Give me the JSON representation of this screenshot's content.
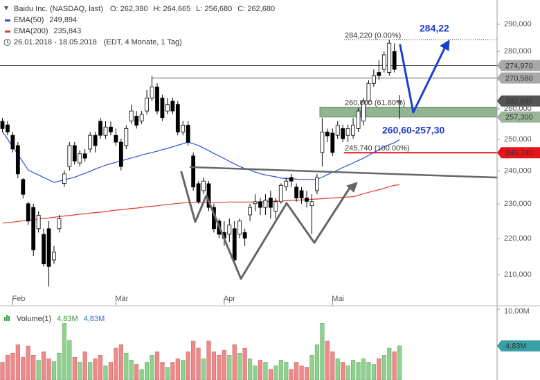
{
  "chart_data": {
    "type": "candlestick",
    "title": "Baidu Inc. (NASDAQ, last)",
    "quote_labels": [
      "O: 262,380",
      "H: 264,665",
      "L: 256,680",
      "C: 262,680"
    ],
    "period": "26.01.2018 - 18.05.2018",
    "period_note": "(EDT, 4 Monate, 1 Tag)",
    "categories": [
      null,
      null,
      "Feb",
      null,
      null,
      null,
      null,
      null,
      null,
      null,
      null,
      null,
      null,
      null,
      null,
      null,
      null,
      null,
      null,
      null,
      null,
      null,
      "Mär",
      null,
      null,
      null,
      null,
      null,
      null,
      null,
      null,
      null,
      null,
      null,
      null,
      null,
      null,
      null,
      null,
      null,
      null,
      null,
      null,
      "Apr",
      null,
      null,
      null,
      null,
      null,
      null,
      null,
      null,
      null,
      null,
      null,
      null,
      null,
      null,
      null,
      null,
      null,
      null,
      null,
      null,
      "Mai",
      null,
      null,
      null,
      null,
      null,
      null,
      null,
      null,
      null,
      null,
      null,
      null,
      null
    ],
    "open": [
      255900,
      254700,
      251300,
      248000,
      237400,
      230100,
      229000,
      222800,
      221200,
      222800,
      214000,
      222800,
      236200,
      241400,
      248000,
      242500,
      245400,
      246900,
      251300,
      255900,
      251300,
      254000,
      251300,
      249100,
      248000,
      256000,
      257600,
      256000,
      259300,
      263700,
      267500,
      263700,
      259300,
      262600,
      261500,
      252400,
      254600,
      244700,
      236100,
      234000,
      236100,
      229000,
      225000,
      221700,
      221200,
      222800,
      221200,
      221700,
      226800,
      230100,
      230700,
      229000,
      231800,
      227900,
      230700,
      235200,
      238000,
      235100,
      234000,
      231800,
      229500,
      234000,
      245800,
      252400,
      252000,
      251300,
      253500,
      251300,
      251300,
      253500,
      256000,
      262600,
      268700,
      272500,
      273600,
      272500,
      280000,
      262380
    ],
    "high": [
      257000,
      256000,
      252400,
      249100,
      237800,
      230700,
      230100,
      227900,
      222800,
      225000,
      217900,
      226800,
      240200,
      249100,
      249100,
      246500,
      246900,
      252400,
      252400,
      257000,
      255900,
      255900,
      253500,
      250200,
      254600,
      261500,
      259300,
      259300,
      266400,
      271400,
      268700,
      264800,
      263700,
      263700,
      262600,
      256000,
      255900,
      245800,
      236900,
      238000,
      236900,
      230100,
      225700,
      225000,
      225700,
      225000,
      225700,
      222800,
      230100,
      232900,
      231800,
      232900,
      234000,
      231800,
      236200,
      238000,
      239100,
      236200,
      235100,
      234000,
      232900,
      239100,
      257000,
      253500,
      253500,
      255900,
      254800,
      254800,
      257000,
      260400,
      263700,
      269800,
      273600,
      276900,
      280000,
      284200,
      283000,
      264665
    ],
    "low": [
      252300,
      251300,
      245800,
      237800,
      231700,
      223900,
      215100,
      221700,
      212200,
      206800,
      212900,
      221700,
      235100,
      240200,
      242000,
      241400,
      242900,
      245800,
      245800,
      250200,
      250200,
      251300,
      248000,
      240200,
      246900,
      255000,
      253500,
      255000,
      258200,
      262600,
      258200,
      256000,
      258200,
      258200,
      251300,
      251300,
      248000,
      234000,
      230100,
      232900,
      227900,
      221700,
      220100,
      217900,
      219000,
      212900,
      220100,
      217900,
      225000,
      227900,
      226800,
      226800,
      225700,
      225700,
      230100,
      234000,
      235100,
      230700,
      230100,
      229000,
      221200,
      232900,
      241400,
      249100,
      244700,
      250200,
      249100,
      249100,
      250200,
      252400,
      254600,
      261500,
      267500,
      269800,
      272500,
      271400,
      272500,
      256680
    ],
    "close": [
      253500,
      252400,
      246900,
      239100,
      232900,
      225000,
      216800,
      226700,
      212900,
      212200,
      216200,
      225700,
      239100,
      248000,
      243100,
      245400,
      244000,
      251300,
      248000,
      251300,
      254000,
      252400,
      249100,
      241400,
      253500,
      259300,
      254600,
      258200,
      263700,
      267500,
      259300,
      257100,
      261500,
      259300,
      252400,
      254600,
      249100,
      235100,
      230700,
      236900,
      229000,
      222800,
      221200,
      220100,
      223900,
      214000,
      225000,
      220100,
      229000,
      230700,
      229000,
      231100,
      229000,
      230700,
      235600,
      236900,
      236900,
      231800,
      231800,
      230800,
      230700,
      238000,
      252400,
      251100,
      245800,
      254600,
      250200,
      253500,
      254600,
      259300,
      262600,
      268700,
      271400,
      271400,
      278800,
      283000,
      273600,
      262680
    ],
    "up_color": "#ffffff",
    "down_color": "#000000",
    "log_scale": true,
    "ylim": [
      201900,
      299200
    ],
    "yticks": [
      {
        "value": 210000,
        "label": "210,000"
      },
      {
        "value": 220000,
        "label": "220,000"
      },
      {
        "value": 230000,
        "label": "230,000"
      },
      {
        "value": 240000,
        "label": "240,000"
      },
      {
        "value": 250000,
        "label": "250,000"
      },
      {
        "value": 260000,
        "label": "260,000"
      },
      {
        "value": 270000,
        "label": "270,000"
      },
      {
        "value": 280000,
        "label": "280,000"
      },
      {
        "value": 290000,
        "label": "290,000"
      }
    ],
    "series": [
      {
        "name": "EMA(50)",
        "color": "#2b4fd6",
        "value_label": "249,894",
        "values": [
          252500,
          250100,
          247600,
          245200,
          242700,
          240300,
          239500,
          238800,
          238000,
          237300,
          236500,
          236900,
          237300,
          237700,
          238100,
          238700,
          239300,
          239900,
          240600,
          241200,
          241800,
          242300,
          242700,
          243200,
          243600,
          244100,
          244500,
          245000,
          245400,
          245800,
          246200,
          246700,
          247100,
          247600,
          248100,
          248600,
          249100,
          248600,
          248000,
          247200,
          246400,
          245500,
          244700,
          243900,
          243000,
          242200,
          241400,
          240800,
          240300,
          239700,
          239200,
          238800,
          238500,
          238200,
          237800,
          237700,
          237600,
          237500,
          237400,
          237400,
          237400,
          237400,
          238100,
          238900,
          239600,
          240300,
          241100,
          241800,
          242500,
          243300,
          244000,
          244900,
          245800,
          246700,
          247600,
          248300,
          248900,
          249900
        ]
      },
      {
        "name": "EMA(200)",
        "color": "#e03a2a",
        "value_label": "235,843",
        "values": [
          224400,
          224600,
          224700,
          224900,
          225100,
          225200,
          225400,
          225600,
          225800,
          225900,
          226100,
          226300,
          226500,
          226600,
          226800,
          227000,
          227100,
          227300,
          227500,
          227600,
          227800,
          228000,
          228200,
          228300,
          228500,
          228700,
          228800,
          229000,
          229200,
          229300,
          229500,
          229700,
          229800,
          230000,
          230200,
          230300,
          230500,
          230500,
          230500,
          230500,
          230500,
          230500,
          230500,
          230500,
          230600,
          230600,
          230600,
          230600,
          230600,
          230600,
          230600,
          230700,
          230800,
          230900,
          230900,
          231000,
          231100,
          231100,
          231200,
          231300,
          231400,
          231500,
          231600,
          231700,
          231800,
          231900,
          232000,
          232100,
          232200,
          232600,
          233100,
          233500,
          233900,
          234300,
          234700,
          235200,
          235600,
          235800
        ]
      }
    ],
    "hlines": [
      {
        "value": 274970,
        "label": "274,970"
      },
      {
        "value": 270580,
        "label": "270,580"
      }
    ],
    "last_price": {
      "value": 262680,
      "label": "262,680"
    },
    "zone": {
      "low": {
        "value": 257300,
        "label": "257,300"
      },
      "high": 260600
    },
    "fib_levels": [
      {
        "value": 284220,
        "label": "284,220 (0.00%)"
      },
      {
        "value": 260600,
        "label": "260,600 (61.80%)"
      },
      {
        "value": 245740,
        "label": "245,740 (100.00%)"
      }
    ],
    "support": {
      "value": 245740,
      "label": "245,740"
    },
    "annotations": [
      "284,22",
      "260,60-257,30"
    ],
    "volume": {
      "name": "Volume(1)",
      "legend_values": [
        "4,83M",
        "4,83M"
      ],
      "values": [
        2.5,
        3.5,
        3.8,
        5.0,
        3.2,
        4.8,
        3.5,
        2.8,
        4.0,
        3.0,
        2.6,
        3.8,
        8.0,
        5.6,
        3.2,
        2.5,
        4.0,
        2.5,
        3.0,
        3.5,
        2.0,
        2.5,
        4.5,
        5.0,
        3.8,
        2.8,
        2.2,
        1.5,
        2.5,
        3.5,
        4.0,
        2.5,
        1.8,
        2.5,
        3.0,
        2.8,
        4.0,
        5.5,
        4.5,
        3.0,
        5.5,
        4.0,
        3.5,
        4.2,
        3.5,
        5.0,
        3.8,
        4.5,
        3.0,
        2.0,
        2.8,
        2.5,
        1.5,
        2.0,
        2.8,
        2.5,
        1.5,
        2.5,
        2.0,
        1.8,
        3.5,
        5.0,
        8.0,
        5.5,
        4.0,
        3.0,
        2.5,
        2.0,
        2.8,
        2.5,
        3.0,
        2.5,
        2.2,
        3.0,
        3.5,
        4.5,
        4.0,
        4.83
      ],
      "up_color": "#8fd18f",
      "down_color": "#ee8a8a",
      "ylim": [
        0,
        10
      ],
      "yticks": [
        {
          "value": 10,
          "label": "10,00M"
        }
      ],
      "last": {
        "value": 4.83,
        "label": "4,83M"
      }
    }
  }
}
